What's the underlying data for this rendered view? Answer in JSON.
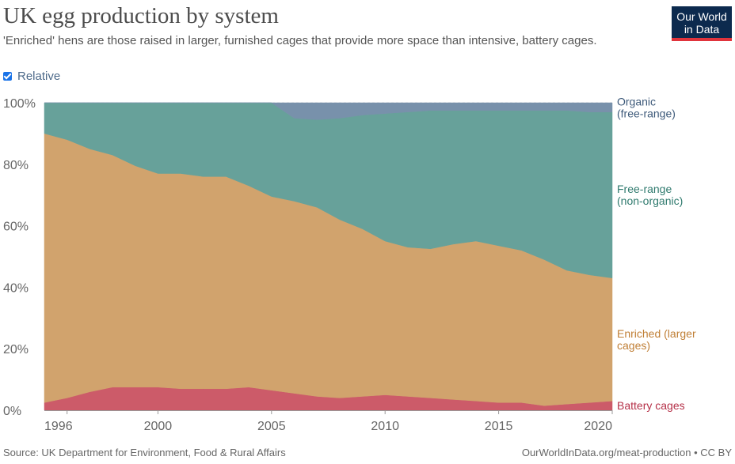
{
  "header": {
    "title": "UK egg production by system",
    "subtitle": "'Enriched' hens are those raised in larger, furnished cages that provide more space than intensive, battery cages.",
    "logo_line1": "Our World",
    "logo_line2": "in Data"
  },
  "controls": {
    "relative_label": "Relative",
    "relative_checked": true
  },
  "footer": {
    "source": "Source: UK Department for Environment, Food & Rural Affairs",
    "credit": "OurWorldInData.org/meat-production • CC BY"
  },
  "colors": {
    "battery": "#cc5b69",
    "enriched": "#d1a36d",
    "free_range": "#67a19a",
    "organic": "#7891ab",
    "battery_label": "#b53048",
    "enriched_label": "#c07f36",
    "free_range_label": "#2f7a6e",
    "organic_label": "#3e5a7a"
  },
  "chart_data": {
    "type": "area",
    "stacked": "relative",
    "x": [
      1995,
      1996,
      1997,
      1998,
      1999,
      2000,
      2001,
      2002,
      2003,
      2004,
      2005,
      2006,
      2007,
      2008,
      2009,
      2010,
      2011,
      2012,
      2013,
      2014,
      2015,
      2016,
      2017,
      2018,
      2019,
      2020
    ],
    "ylim": [
      0,
      100
    ],
    "yticks": [
      "0%",
      "20%",
      "40%",
      "60%",
      "80%",
      "100%"
    ],
    "yticks_values": [
      0,
      20,
      40,
      60,
      80,
      100
    ],
    "xticks": [
      "1996",
      "2000",
      "2005",
      "2010",
      "2015",
      "2020"
    ],
    "xticks_values": [
      1996,
      2000,
      2005,
      2010,
      2015,
      2020
    ],
    "series": [
      {
        "name": "Battery cages",
        "key": "battery",
        "values": [
          2.5,
          4,
          6,
          7.5,
          7.5,
          7.5,
          7,
          7,
          7,
          7.5,
          6.5,
          5.5,
          4.5,
          4,
          4.5,
          5,
          4.5,
          4,
          3.5,
          3,
          2.5,
          2.5,
          1.5,
          2,
          2.5,
          3
        ]
      },
      {
        "name": "Enriched (larger cages)",
        "key": "enriched",
        "values": [
          87.5,
          84,
          79,
          75.5,
          72,
          69.5,
          70,
          69,
          69,
          65.5,
          63,
          62.5,
          61.5,
          58,
          54.5,
          50,
          48.5,
          48.5,
          50.5,
          52,
          51,
          49.5,
          47.5,
          43.5,
          41.5,
          40
        ]
      },
      {
        "name": "Free-range (non-organic)",
        "key": "free_range",
        "values": [
          10,
          12,
          15,
          17,
          20.5,
          23,
          23,
          24,
          24,
          27,
          30.5,
          27,
          28.5,
          33,
          37,
          41.5,
          44,
          45,
          43.5,
          42.5,
          44,
          45.5,
          48.5,
          52,
          53,
          54
        ]
      },
      {
        "name": "Organic (free-range)",
        "key": "organic",
        "values": [
          0,
          0,
          0,
          0,
          0,
          0,
          0,
          0,
          0,
          0,
          0,
          5,
          5.5,
          5,
          4,
          3.5,
          3,
          2.5,
          2.5,
          2.5,
          2.5,
          2.5,
          2.5,
          2.5,
          3,
          3
        ]
      }
    ],
    "legend_labels": [
      {
        "key": "organic",
        "lines": [
          "Organic",
          "(free-range)"
        ]
      },
      {
        "key": "free_range",
        "lines": [
          "Free-range",
          "(non-organic)"
        ]
      },
      {
        "key": "enriched",
        "lines": [
          "Enriched (larger",
          "cages)"
        ]
      },
      {
        "key": "battery",
        "lines": [
          "Battery cages"
        ]
      }
    ]
  }
}
